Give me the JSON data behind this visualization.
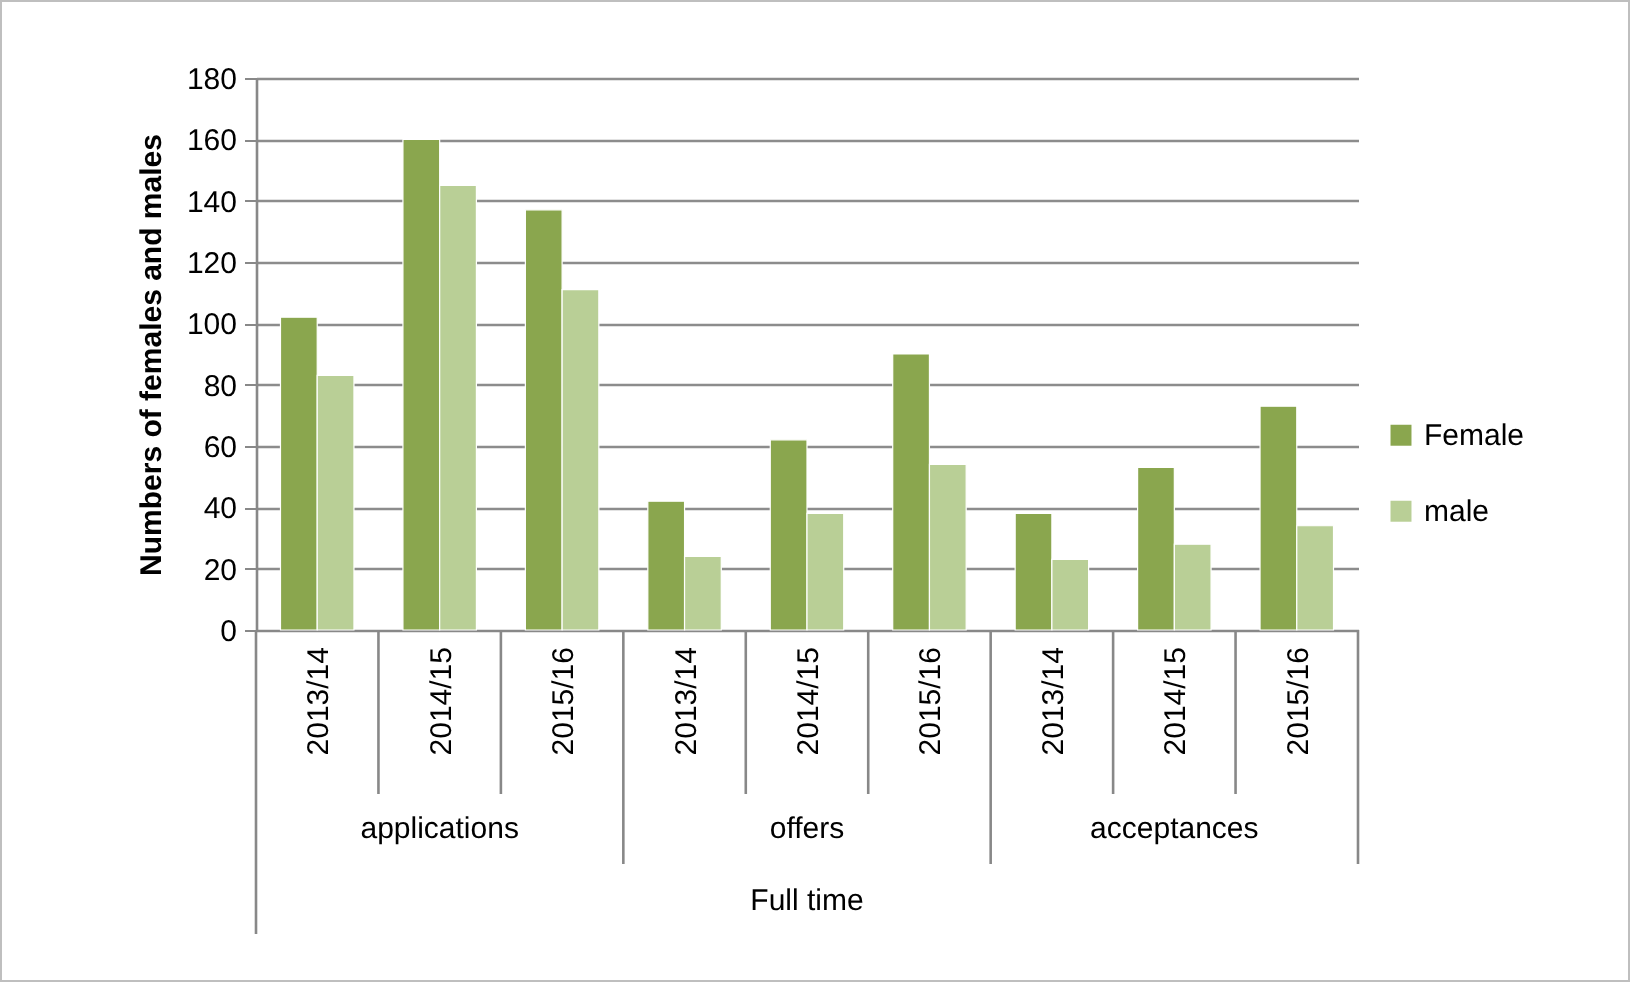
{
  "chart_data": {
    "type": "bar",
    "ylabel": "Numbers of females and males",
    "categories": [
      "2013/14",
      "2014/15",
      "2015/16",
      "2013/14",
      "2014/15",
      "2015/16",
      "2013/14",
      "2014/15",
      "2015/16"
    ],
    "series": [
      {
        "name": "Female",
        "color": "#8aa64e",
        "values": [
          102,
          160,
          137,
          42,
          62,
          90,
          38,
          53,
          73
        ]
      },
      {
        "name": "male",
        "color": "#b9cf96",
        "values": [
          83,
          145,
          111,
          24,
          38,
          54,
          23,
          28,
          34
        ]
      }
    ],
    "annotations": [
      "applications",
      "offers",
      "acceptances",
      "Full time"
    ],
    "ylim": [
      0,
      180
    ],
    "yticks": [
      0,
      20,
      40,
      60,
      80,
      100,
      120,
      140,
      160,
      180
    ],
    "grid": "y",
    "legend": "right"
  }
}
